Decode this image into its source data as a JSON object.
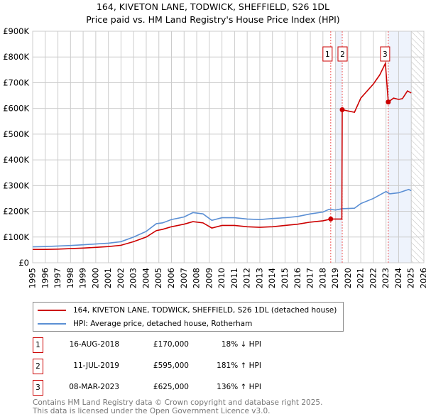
{
  "chart_data": {
    "type": "line",
    "title": "164, KIVETON LANE, TODWICK, SHEFFIELD, S26 1DL",
    "subtitle": "Price paid vs. HM Land Registry's House Price Index (HPI)",
    "xlim": [
      1995,
      2026
    ],
    "ylim": [
      0,
      900000
    ],
    "x_ticks": [
      "1995",
      "1996",
      "1997",
      "1998",
      "1999",
      "2000",
      "2001",
      "2002",
      "2003",
      "2004",
      "2005",
      "2006",
      "2007",
      "2008",
      "2009",
      "2010",
      "2011",
      "2012",
      "2013",
      "2014",
      "2015",
      "2016",
      "2017",
      "2018",
      "2019",
      "2020",
      "2021",
      "2022",
      "2023",
      "2024",
      "2025",
      "2026"
    ],
    "y_ticks": [
      {
        "v": 0,
        "label": "£0"
      },
      {
        "v": 100000,
        "label": "£100K"
      },
      {
        "v": 200000,
        "label": "£200K"
      },
      {
        "v": 300000,
        "label": "£300K"
      },
      {
        "v": 400000,
        "label": "£400K"
      },
      {
        "v": 500000,
        "label": "£500K"
      },
      {
        "v": 600000,
        "label": "£600K"
      },
      {
        "v": 700000,
        "label": "£700K"
      },
      {
        "v": 800000,
        "label": "£800K"
      },
      {
        "v": 900000,
        "label": "£900K"
      }
    ],
    "grid": true,
    "series": [
      {
        "name": "164, KIVETON LANE, TODWICK, SHEFFIELD, S26 1DL (detached house)",
        "color": "#cc0000",
        "points": [
          [
            1995,
            52000
          ],
          [
            1996,
            52000
          ],
          [
            1997,
            53000
          ],
          [
            1998,
            55000
          ],
          [
            1999,
            57000
          ],
          [
            2000,
            60000
          ],
          [
            2001,
            63000
          ],
          [
            2002,
            68000
          ],
          [
            2003,
            82000
          ],
          [
            2004,
            100000
          ],
          [
            2004.8,
            125000
          ],
          [
            2005.3,
            130000
          ],
          [
            2006,
            140000
          ],
          [
            2007,
            150000
          ],
          [
            2007.7,
            160000
          ],
          [
            2008.5,
            155000
          ],
          [
            2009.2,
            135000
          ],
          [
            2010,
            145000
          ],
          [
            2011,
            145000
          ],
          [
            2012,
            140000
          ],
          [
            2013,
            138000
          ],
          [
            2014,
            140000
          ],
          [
            2015,
            145000
          ],
          [
            2016,
            150000
          ],
          [
            2017,
            158000
          ],
          [
            2018,
            163000
          ],
          [
            2018.62,
            170000
          ],
          [
            2019.5,
            170000
          ],
          [
            2019.53,
            595000
          ],
          [
            2020,
            590000
          ],
          [
            2020.5,
            585000
          ],
          [
            2021,
            640000
          ],
          [
            2022,
            695000
          ],
          [
            2022.5,
            730000
          ],
          [
            2022.95,
            775000
          ],
          [
            2023.18,
            625000
          ],
          [
            2023.6,
            640000
          ],
          [
            2024,
            635000
          ],
          [
            2024.3,
            638000
          ],
          [
            2024.7,
            668000
          ],
          [
            2025,
            660000
          ]
        ]
      },
      {
        "name": "HPI: Average price, detached house, Rotherham",
        "color": "#5b8fd4",
        "points": [
          [
            1995,
            62000
          ],
          [
            1996,
            63000
          ],
          [
            1997,
            65000
          ],
          [
            1998,
            67000
          ],
          [
            1999,
            70000
          ],
          [
            2000,
            73000
          ],
          [
            2001,
            76000
          ],
          [
            2002,
            82000
          ],
          [
            2003,
            100000
          ],
          [
            2004,
            122000
          ],
          [
            2004.8,
            152000
          ],
          [
            2005.3,
            155000
          ],
          [
            2006,
            168000
          ],
          [
            2007,
            178000
          ],
          [
            2007.7,
            195000
          ],
          [
            2008.5,
            190000
          ],
          [
            2009.2,
            165000
          ],
          [
            2010,
            175000
          ],
          [
            2011,
            175000
          ],
          [
            2012,
            170000
          ],
          [
            2013,
            168000
          ],
          [
            2014,
            172000
          ],
          [
            2015,
            175000
          ],
          [
            2016,
            180000
          ],
          [
            2017,
            190000
          ],
          [
            2018,
            197000
          ],
          [
            2018.5,
            208000
          ],
          [
            2019,
            205000
          ],
          [
            2019.5,
            210000
          ],
          [
            2020.5,
            212000
          ],
          [
            2021,
            230000
          ],
          [
            2022,
            250000
          ],
          [
            2023,
            277000
          ],
          [
            2023.3,
            268000
          ],
          [
            2024,
            272000
          ],
          [
            2024.8,
            285000
          ],
          [
            2025,
            280000
          ]
        ]
      }
    ],
    "sales": [
      {
        "id": "1",
        "date": "16-AUG-2018",
        "x": 2018.62,
        "price": "£170,000",
        "value": 170000,
        "hpi": "18% ↓ HPI"
      },
      {
        "id": "2",
        "date": "11-JUL-2019",
        "x": 2019.53,
        "price": "£595,000",
        "value": 595000,
        "hpi": "181% ↑ HPI"
      },
      {
        "id": "3",
        "date": "08-MAR-2023",
        "x": 2023.18,
        "price": "£625,000",
        "value": 625000,
        "hpi": "136% ↑ HPI"
      }
    ],
    "shaded_ranges": [
      [
        2019.0,
        2019.53
      ],
      [
        2023.18,
        2025.0
      ]
    ],
    "forecast_hatch_from": 2025.0,
    "legend_placement": "below"
  },
  "footer": [
    "Contains HM Land Registry data © Crown copyright and database right 2025.",
    "This data is licensed under the Open Government Licence v3.0."
  ]
}
